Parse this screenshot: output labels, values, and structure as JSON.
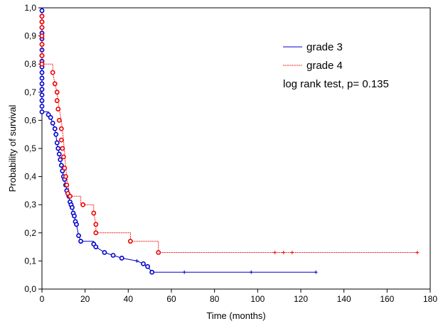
{
  "chart_data": {
    "type": "line",
    "subtype": "kaplan-meier",
    "title": "",
    "xlabel": "Time (months)",
    "ylabel": "Probability of survival",
    "xlim": [
      0,
      180
    ],
    "ylim": [
      0,
      1.0
    ],
    "x_ticks": [
      0,
      20,
      40,
      60,
      80,
      100,
      120,
      140,
      160,
      180
    ],
    "x_tick_labels": [
      "0",
      "20",
      "40",
      "60",
      "80",
      "100",
      "120",
      "140",
      "160",
      "180"
    ],
    "y_ticks": [
      0,
      0.1,
      0.2,
      0.3,
      0.4,
      0.5,
      0.6,
      0.7,
      0.8,
      0.9,
      1.0
    ],
    "y_tick_labels": [
      "0,0",
      "0,1",
      "0,2",
      "0,3",
      "0,4",
      "0,5",
      "0,6",
      "0,7",
      "0,8",
      "0,9",
      "1,0"
    ],
    "grid": false,
    "legend_position": "top-right",
    "annotation": "log rank test, p= 0.135",
    "series": [
      {
        "name": "grade 3",
        "color": "#0000cc",
        "line_style": "solid",
        "steps": [
          [
            0,
            0.99
          ],
          [
            0,
            0.63
          ],
          [
            3,
            0.63
          ],
          [
            3,
            0.62
          ],
          [
            4,
            0.61
          ],
          [
            5,
            0.59
          ],
          [
            6,
            0.57
          ],
          [
            7,
            0.52
          ],
          [
            8,
            0.48
          ],
          [
            9,
            0.44
          ],
          [
            10,
            0.4
          ],
          [
            11,
            0.37
          ],
          [
            12,
            0.34
          ],
          [
            13,
            0.31
          ],
          [
            14,
            0.29
          ],
          [
            15,
            0.26
          ],
          [
            16,
            0.23
          ],
          [
            17,
            0.19
          ],
          [
            18,
            0.17
          ],
          [
            24,
            0.17
          ],
          [
            24,
            0.16
          ],
          [
            25,
            0.15
          ],
          [
            29,
            0.13
          ],
          [
            33,
            0.12
          ],
          [
            37,
            0.11
          ],
          [
            44,
            0.1
          ],
          [
            47,
            0.09
          ],
          [
            49,
            0.08
          ],
          [
            51,
            0.06
          ],
          [
            127,
            0.06
          ]
        ],
        "events": [
          [
            0,
            0.99
          ],
          [
            0,
            0.97
          ],
          [
            0,
            0.95
          ],
          [
            0,
            0.93
          ],
          [
            0,
            0.91
          ],
          [
            0,
            0.89
          ],
          [
            0,
            0.87
          ],
          [
            0,
            0.85
          ],
          [
            0,
            0.83
          ],
          [
            0,
            0.81
          ],
          [
            0,
            0.79
          ],
          [
            0,
            0.77
          ],
          [
            0,
            0.75
          ],
          [
            0,
            0.73
          ],
          [
            0,
            0.71
          ],
          [
            0,
            0.69
          ],
          [
            0,
            0.67
          ],
          [
            0,
            0.65
          ],
          [
            0,
            0.63
          ],
          [
            3,
            0.62
          ],
          [
            4,
            0.61
          ],
          [
            5,
            0.59
          ],
          [
            6,
            0.57
          ],
          [
            6.5,
            0.55
          ],
          [
            7,
            0.52
          ],
          [
            7.5,
            0.5
          ],
          [
            8,
            0.48
          ],
          [
            8.5,
            0.46
          ],
          [
            9,
            0.44
          ],
          [
            9.5,
            0.42
          ],
          [
            10,
            0.4
          ],
          [
            10.5,
            0.39
          ],
          [
            11,
            0.37
          ],
          [
            11.5,
            0.35
          ],
          [
            12,
            0.34
          ],
          [
            12.5,
            0.33
          ],
          [
            13,
            0.31
          ],
          [
            13.5,
            0.3
          ],
          [
            14,
            0.29
          ],
          [
            14.5,
            0.27
          ],
          [
            15,
            0.26
          ],
          [
            15.5,
            0.24
          ],
          [
            16,
            0.23
          ],
          [
            17,
            0.19
          ],
          [
            18,
            0.17
          ],
          [
            24,
            0.16
          ],
          [
            25,
            0.15
          ],
          [
            29,
            0.13
          ],
          [
            33,
            0.12
          ],
          [
            37,
            0.11
          ],
          [
            47,
            0.09
          ],
          [
            49,
            0.08
          ],
          [
            51,
            0.06
          ]
        ],
        "censored": [
          [
            44,
            0.1
          ],
          [
            66,
            0.06
          ],
          [
            97,
            0.06
          ],
          [
            127,
            0.06
          ]
        ]
      },
      {
        "name": "grade 4",
        "color": "#ee0000",
        "line_style": "dotted",
        "steps": [
          [
            0,
            0.98
          ],
          [
            0,
            0.8
          ],
          [
            5,
            0.8
          ],
          [
            5,
            0.77
          ],
          [
            6,
            0.73
          ],
          [
            7,
            0.7
          ],
          [
            8,
            0.64
          ],
          [
            9,
            0.6
          ],
          [
            10,
            0.53
          ],
          [
            11,
            0.43
          ],
          [
            12,
            0.37
          ],
          [
            13,
            0.33
          ],
          [
            18,
            0.33
          ],
          [
            18,
            0.3
          ],
          [
            24,
            0.3
          ],
          [
            24,
            0.27
          ],
          [
            25,
            0.23
          ],
          [
            25,
            0.2
          ],
          [
            41,
            0.2
          ],
          [
            41,
            0.17
          ],
          [
            54,
            0.17
          ],
          [
            54,
            0.13
          ],
          [
            174,
            0.13
          ]
        ],
        "events": [
          [
            0,
            0.97
          ],
          [
            0,
            0.95
          ],
          [
            0,
            0.93
          ],
          [
            0,
            0.9
          ],
          [
            0,
            0.87
          ],
          [
            0,
            0.83
          ],
          [
            0,
            0.8
          ],
          [
            5,
            0.77
          ],
          [
            6,
            0.73
          ],
          [
            7,
            0.7
          ],
          [
            7,
            0.67
          ],
          [
            7.5,
            0.64
          ],
          [
            8,
            0.6
          ],
          [
            9,
            0.57
          ],
          [
            9,
            0.53
          ],
          [
            9.5,
            0.5
          ],
          [
            10,
            0.47
          ],
          [
            10.5,
            0.43
          ],
          [
            11,
            0.4
          ],
          [
            11.5,
            0.37
          ],
          [
            12,
            0.34
          ],
          [
            13,
            0.33
          ],
          [
            19,
            0.3
          ],
          [
            24,
            0.27
          ],
          [
            25,
            0.23
          ],
          [
            25,
            0.2
          ],
          [
            41,
            0.17
          ],
          [
            54,
            0.13
          ]
        ],
        "censored": [
          [
            108,
            0.13
          ],
          [
            112,
            0.13
          ],
          [
            116,
            0.13
          ],
          [
            174,
            0.13
          ]
        ]
      }
    ]
  }
}
